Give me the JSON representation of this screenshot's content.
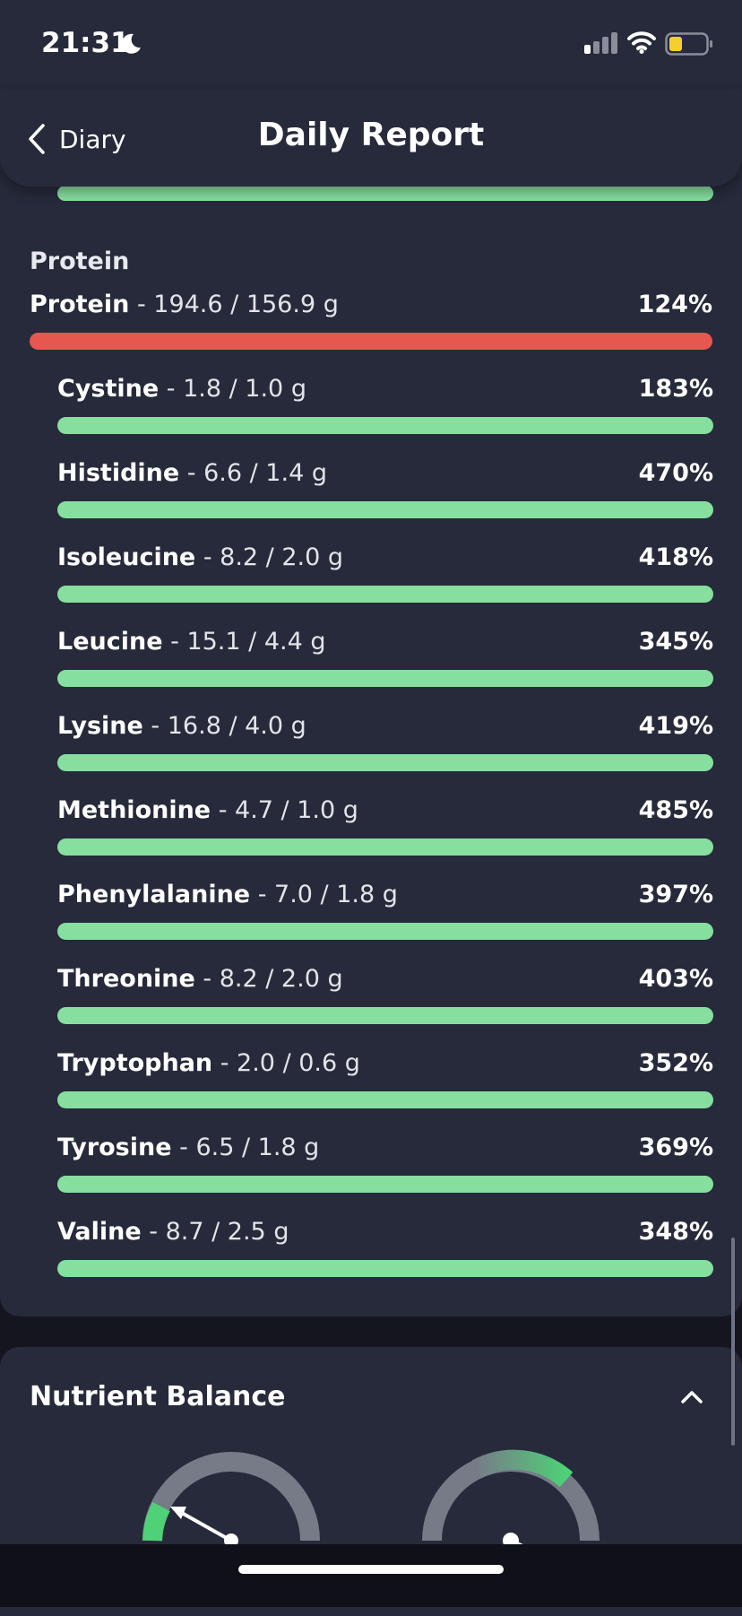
{
  "status_bar": {
    "time": "21:31",
    "battery_color": "#f5cf2e"
  },
  "nav": {
    "back_label": "Diary",
    "title": "Daily Report"
  },
  "protein_section": {
    "heading": "Protein",
    "total": {
      "name": "Protein",
      "amount": " - 194.6 / 156.9 g",
      "percent": "124%",
      "status_color": "#e6574f"
    },
    "items": [
      {
        "name": "Cystine",
        "amount": " - 1.8 / 1.0 g",
        "percent": "183%"
      },
      {
        "name": "Histidine",
        "amount": " - 6.6 / 1.4 g",
        "percent": "470%"
      },
      {
        "name": "Isoleucine",
        "amount": " - 8.2 / 2.0 g",
        "percent": "418%"
      },
      {
        "name": "Leucine",
        "amount": " - 15.1 / 4.4 g",
        "percent": "345%"
      },
      {
        "name": "Lysine",
        "amount": " - 16.8 / 4.0 g",
        "percent": "419%"
      },
      {
        "name": "Methionine",
        "amount": " - 4.7 / 1.0 g",
        "percent": "485%"
      },
      {
        "name": "Phenylalanine",
        "amount": " - 7.0 / 1.8 g",
        "percent": "397%"
      },
      {
        "name": "Threonine",
        "amount": " - 8.2 / 2.0 g",
        "percent": "403%"
      },
      {
        "name": "Tryptophan",
        "amount": " - 2.0 / 0.6 g",
        "percent": "352%"
      },
      {
        "name": "Tyrosine",
        "amount": " - 6.5 / 1.8 g",
        "percent": "369%"
      },
      {
        "name": "Valine",
        "amount": " - 8.7 / 2.5 g",
        "percent": "348%"
      }
    ],
    "ok_color": "#86df9f"
  },
  "balance_section": {
    "title": "Nutrient Balance",
    "toggle_icon": "chevron-up-icon"
  },
  "icons": [
    "moon-icon",
    "signal-icon",
    "wifi-icon",
    "battery-icon",
    "chevron-left-icon",
    "chevron-up-icon",
    "gauge-icon"
  ]
}
